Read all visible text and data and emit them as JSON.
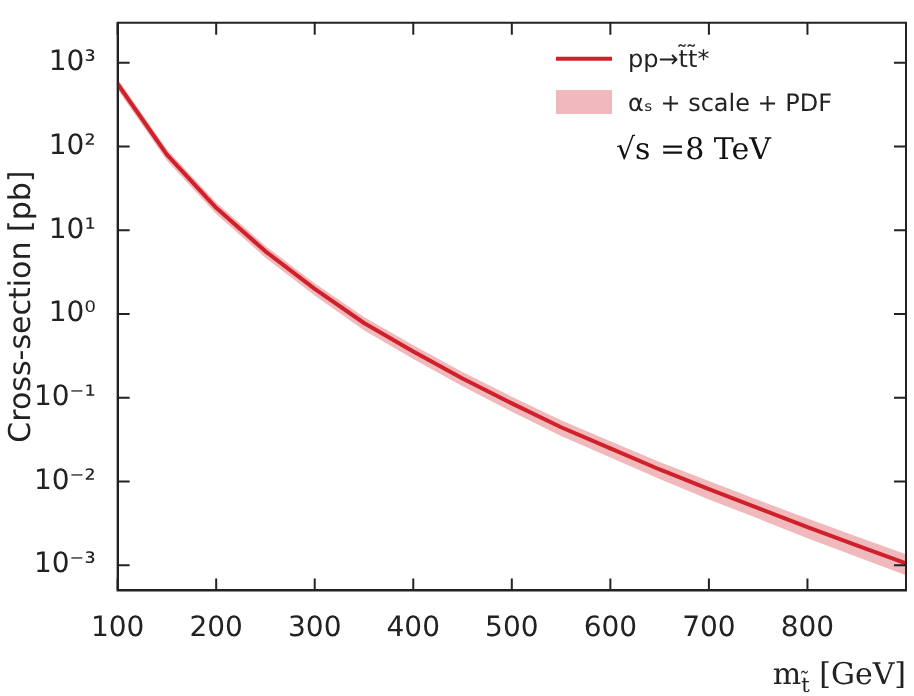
{
  "chart_data": {
    "type": "line",
    "xlabel": "m$_{t̃}$ [GeV]",
    "ylabel": "Cross-section [pb]",
    "x": [
      100,
      150,
      200,
      250,
      300,
      350,
      400,
      450,
      500,
      550,
      600,
      650,
      700,
      750,
      800,
      850,
      900
    ],
    "series": [
      {
        "name": "pp→t̃t̃*",
        "color": "#d0202a",
        "values": [
          560,
          80,
          18.5,
          5.6,
          1.99,
          0.78,
          0.357,
          0.17,
          0.0856,
          0.0444,
          0.0248,
          0.0139,
          0.0081,
          0.0048,
          0.00285,
          0.00173,
          0.00105
        ],
        "lower": [
          480,
          68,
          15.6,
          4.7,
          1.66,
          0.64,
          0.29,
          0.137,
          0.068,
          0.035,
          0.0193,
          0.0107,
          0.0061,
          0.0036,
          0.0021,
          0.00126,
          0.00076
        ],
        "upper": [
          640,
          92,
          21.4,
          6.5,
          2.32,
          0.92,
          0.424,
          0.203,
          0.103,
          0.0538,
          0.0303,
          0.0171,
          0.0101,
          0.006,
          0.0036,
          0.0022,
          0.00135
        ]
      }
    ],
    "xlim": [
      100,
      900
    ],
    "xticks": [
      100,
      200,
      300,
      400,
      500,
      600,
      700,
      800,
      {
        "value": 900,
        "label": null
      }
    ],
    "ylim": [
      0.0005,
      3000
    ],
    "yticks": [
      {
        "value": 0.001,
        "label": "10⁻³"
      },
      {
        "value": 0.01,
        "label": "10⁻²"
      },
      {
        "value": 0.1,
        "label": "10⁻¹"
      },
      {
        "value": 1,
        "label": "10⁰"
      },
      {
        "value": 10,
        "label": "10¹"
      },
      {
        "value": 100,
        "label": "10²"
      },
      {
        "value": 1000,
        "label": "10³"
      }
    ],
    "log": true,
    "grid": false,
    "legend": "top right",
    "marker": "none",
    "line_style": "solid",
    "annotations": [
      "αₛ + scale + PDF",
      "√s =8 TeV"
    ]
  }
}
